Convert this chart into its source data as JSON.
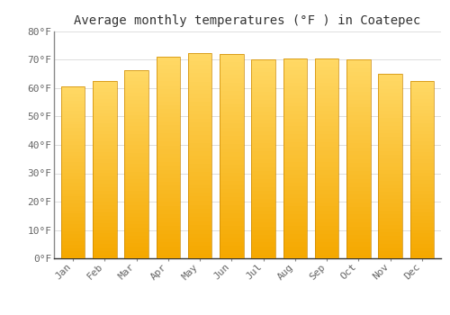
{
  "title": "Average monthly temperatures (°F ) in Coatepec",
  "months": [
    "Jan",
    "Feb",
    "Mar",
    "Apr",
    "May",
    "Jun",
    "Jul",
    "Aug",
    "Sep",
    "Oct",
    "Nov",
    "Dec"
  ],
  "values": [
    60.5,
    62.5,
    66.5,
    71.0,
    72.5,
    72.0,
    70.0,
    70.5,
    70.5,
    70.0,
    65.0,
    62.5
  ],
  "bar_color_bottom": "#F5A800",
  "bar_color_top": "#FFD966",
  "background_color": "#FFFFFF",
  "grid_color": "#DDDDDD",
  "ylim": [
    0,
    80
  ],
  "ytick_step": 10,
  "title_fontsize": 10,
  "tick_fontsize": 8,
  "font_family": "monospace",
  "left_spine_color": "#888888",
  "bottom_spine_color": "#333333"
}
